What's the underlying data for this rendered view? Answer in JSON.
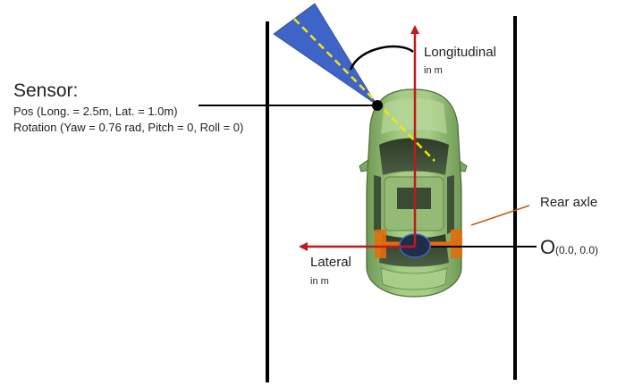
{
  "sensor": {
    "heading": "Sensor:",
    "pos_line": "Pos (Long. = 2.5m, Lat. = 1.0m)",
    "rotation_line": "Rotation (Yaw = 0.76 rad, Pitch = 0, Roll = 0)"
  },
  "axes": {
    "longitudinal": {
      "label": "Longitudinal",
      "unit": "in m"
    },
    "lateral": {
      "label": "Lateral",
      "unit": "in m"
    }
  },
  "rear_axle_label": "Rear axle",
  "origin": {
    "letter": "O",
    "coords": "(0.0, 0.0)"
  },
  "colors": {
    "axis_arrow": "#c0191e",
    "fov_cone": "#3f64c8",
    "sensor_ray": "#f2e80a",
    "rear_axle_marker": "#e46c0a",
    "rear_axle_pointer": "#c55a11",
    "car_body": "#9ac07a",
    "lane_line": "#000000"
  }
}
